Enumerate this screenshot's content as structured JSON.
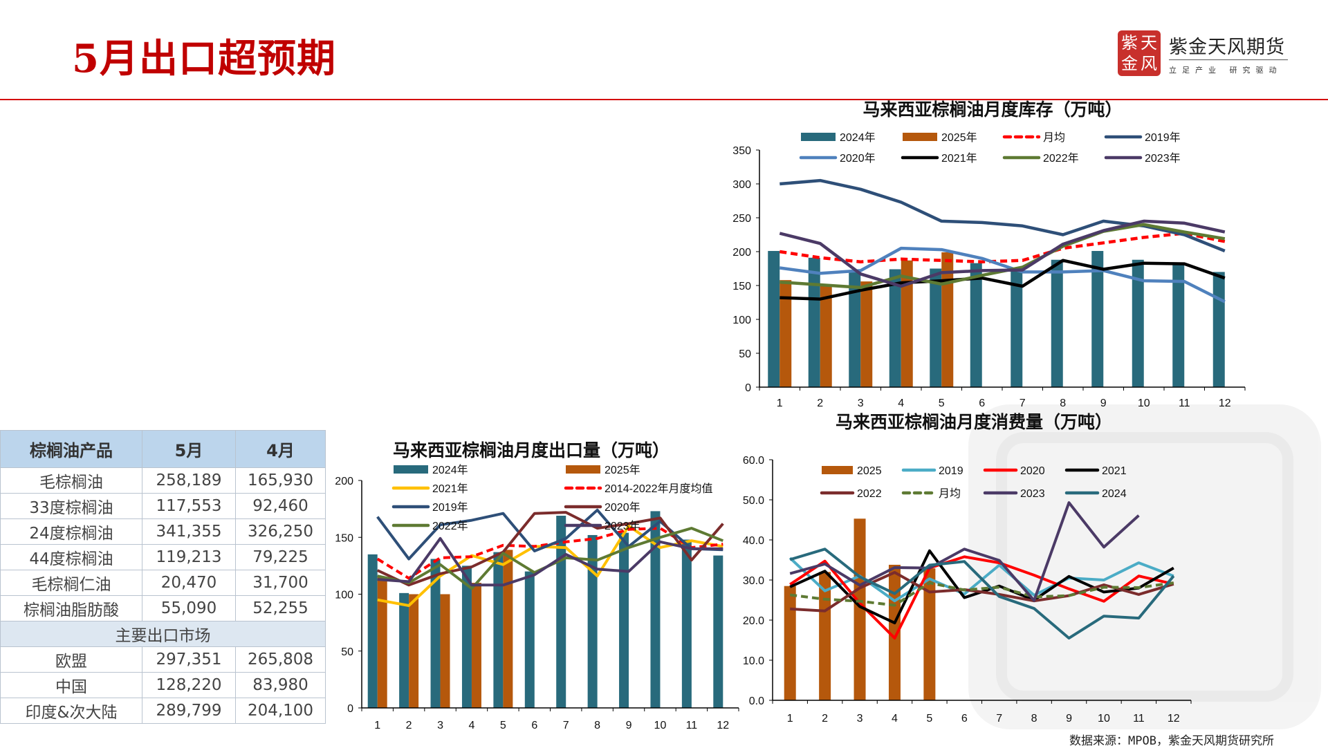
{
  "header": {
    "title": "5月出口超预期"
  },
  "logo": {
    "seal_chars": [
      "紫",
      "天",
      "金",
      "风"
    ],
    "brand": "紫金天风期货",
    "slogan": "立足产业 研究驱动"
  },
  "source": "数据来源：MPOB，紫金天风期货研究所",
  "table": {
    "headers": [
      "棕榈油产品",
      "5月",
      "4月"
    ],
    "rows": [
      [
        "毛棕榈油",
        "258,189",
        "165,930"
      ],
      [
        "33度棕榈油",
        "117,553",
        "92,460"
      ],
      [
        "24度棕榈油",
        "341,355",
        "326,250"
      ],
      [
        "44度棕榈油",
        "119,213",
        "79,225"
      ],
      [
        "毛棕榈仁油",
        "20,470",
        "31,700"
      ],
      [
        "棕榈油脂肪酸",
        "55,090",
        "52,255"
      ]
    ],
    "section": "主要出口市场",
    "market_rows": [
      [
        "欧盟",
        "297,351",
        "265,808"
      ],
      [
        "中国",
        "128,220",
        "83,980"
      ],
      [
        "印度&次大陆",
        "289,799",
        "204,100"
      ]
    ]
  },
  "chart_data": [
    {
      "type": "bar+line",
      "title": "马来西亚棕榈油月度库存（万吨）",
      "categories": [
        "1",
        "2",
        "3",
        "4",
        "5",
        "6",
        "7",
        "8",
        "9",
        "10",
        "11",
        "12"
      ],
      "ylim": [
        0,
        350
      ],
      "y_ticks": [
        "0",
        "50",
        "100",
        "150",
        "200",
        "250",
        "300",
        "350"
      ],
      "grid": false,
      "legend_position": "top",
      "legend": [
        "2024年",
        "2025年",
        "月均",
        "2019年",
        "2020年",
        "2021年",
        "2022年",
        "2023年"
      ],
      "bar_series": [
        {
          "name": "2024年",
          "color": "#286a7c",
          "values": [
            201,
            191,
            171,
            174,
            175,
            183,
            172,
            188,
            201,
            188,
            181,
            170
          ]
        },
        {
          "name": "2025年",
          "color": "#b5580c",
          "values": [
            158,
            152,
            156,
            187,
            199,
            null,
            null,
            null,
            null,
            null,
            null,
            null
          ]
        }
      ],
      "line_series": [
        {
          "name": "月均",
          "color": "#ff0000",
          "dashed": true,
          "values": [
            200,
            191,
            185,
            189,
            187,
            185,
            187,
            205,
            213,
            221,
            227,
            215
          ]
        },
        {
          "name": "2019年",
          "color": "#2e4f78",
          "values": [
            300,
            305,
            292,
            273,
            245,
            243,
            238,
            225,
            245,
            238,
            225,
            201
          ]
        },
        {
          "name": "2020年",
          "color": "#4f81bd",
          "values": [
            176,
            168,
            172,
            205,
            203,
            190,
            170,
            170,
            172,
            157,
            156,
            126
          ]
        },
        {
          "name": "2021年",
          "color": "#000000",
          "values": [
            132,
            130,
            143,
            154,
            157,
            161,
            149,
            187,
            174,
            183,
            182,
            161
          ]
        },
        {
          "name": "2022年",
          "color": "#5e7a33",
          "values": [
            155,
            151,
            147,
            164,
            152,
            165,
            177,
            208,
            230,
            240,
            229,
            219
          ]
        },
        {
          "name": "2023年",
          "color": "#4b3a66",
          "values": [
            227,
            212,
            167,
            149,
            169,
            172,
            173,
            211,
            231,
            245,
            242,
            229
          ]
        }
      ]
    },
    {
      "type": "bar+line",
      "title": "马来西亚棕榈油月度出口量（万吨）",
      "categories": [
        "1",
        "2",
        "3",
        "4",
        "5",
        "6",
        "7",
        "8",
        "9",
        "10",
        "11",
        "12"
      ],
      "ylim": [
        0,
        200
      ],
      "y_ticks": [
        "0",
        "50",
        "100",
        "150",
        "200"
      ],
      "grid": false,
      "legend_position": "top",
      "legend": [
        "2024年",
        "2025年",
        "2021年",
        "2014-2022年月度均值",
        "2019年",
        "2020年",
        "2022年",
        "2023年"
      ],
      "bar_series": [
        {
          "name": "2024年",
          "color": "#286a7c",
          "values": [
            135,
            101,
            131,
            125,
            137,
            120,
            169,
            152,
            154,
            173,
            148,
            134
          ]
        },
        {
          "name": "2025年",
          "color": "#b5580c",
          "values": [
            115,
            100,
            100,
            110,
            139,
            null,
            null,
            null,
            null,
            null,
            null,
            null
          ]
        }
      ],
      "line_series": [
        {
          "name": "2021年",
          "color": "#ffc000",
          "values": [
            95,
            90,
            116,
            134,
            126,
            142,
            141,
            116,
            160,
            141,
            147,
            142
          ]
        },
        {
          "name": "2014-2022年月度均值",
          "color": "#ff0000",
          "dashed": true,
          "values": [
            131,
            114,
            132,
            133,
            143,
            142,
            146,
            149,
            157,
            158,
            141,
            144
          ]
        },
        {
          "name": "2019年",
          "color": "#2e4f78",
          "values": [
            168,
            131,
            161,
            165,
            171,
            138,
            149,
            174,
            142,
            164,
            140,
            139
          ]
        },
        {
          "name": "2020年",
          "color": "#7b2c2c",
          "values": [
            121,
            108,
            118,
            124,
            137,
            171,
            172,
            158,
            162,
            167,
            130,
            162
          ]
        },
        {
          "name": "2022年",
          "color": "#5e7a33",
          "values": [
            116,
            110,
            126,
            105,
            136,
            119,
            132,
            130,
            141,
            150,
            158,
            147
          ]
        },
        {
          "name": "2023年",
          "color": "#4b3a66",
          "values": [
            113,
            111,
            149,
            108,
            108,
            117,
            135,
            122,
            120,
            146,
            140,
            140
          ]
        }
      ]
    },
    {
      "type": "bar+line",
      "title": "马来西亚棕榈油月度消费量（万吨）",
      "categories": [
        "1",
        "2",
        "3",
        "4",
        "5",
        "6",
        "7",
        "8",
        "9",
        "10",
        "11",
        "12"
      ],
      "ylim": [
        0,
        60
      ],
      "y_ticks": [
        "0.0",
        "10.0",
        "20.0",
        "30.0",
        "40.0",
        "50.0",
        "60.0"
      ],
      "grid": false,
      "legend_position": "top",
      "legend": [
        "2025",
        "2019",
        "2020",
        "2021",
        "2022",
        "月均",
        "2023",
        "2024"
      ],
      "bar_series": [
        {
          "name": "2025",
          "color": "#b5580c",
          "values": [
            28.5,
            32.0,
            45.3,
            33.8,
            32.9,
            null,
            null,
            null,
            null,
            null,
            null,
            null
          ]
        }
      ],
      "line_series": [
        {
          "name": "2019",
          "color": "#4bacc6",
          "values": [
            35.5,
            27.3,
            31.0,
            24.8,
            30.3,
            26.5,
            33.7,
            26.2,
            30.5,
            30.0,
            34.3,
            31.0
          ]
        },
        {
          "name": "2020",
          "color": "#ff0000",
          "values": [
            28.9,
            34.7,
            24.2,
            15.5,
            33.0,
            35.8,
            34.3,
            31.2,
            27.8,
            24.7,
            31.0,
            29.0
          ]
        },
        {
          "name": "2021",
          "color": "#000000",
          "values": [
            28.3,
            32.2,
            23.4,
            19.3,
            37.3,
            25.6,
            28.5,
            25.0,
            30.9,
            27.0,
            28.0,
            33.0
          ]
        },
        {
          "name": "2022",
          "color": "#7b2c2c",
          "values": [
            22.8,
            22.3,
            28.0,
            31.9,
            27.0,
            27.6,
            26.4,
            24.8,
            26.1,
            28.8,
            26.4,
            29.0
          ]
        },
        {
          "name": "月均",
          "color": "#5e7a33",
          "dashed": true,
          "values": [
            26.3,
            25.2,
            24.7,
            23.7,
            29.3,
            27.5,
            28.2,
            25.8,
            26.1,
            28.2,
            28.1,
            29.3
          ]
        },
        {
          "name": "2023",
          "color": "#4b3a66",
          "values": [
            31.6,
            34.0,
            28.7,
            33.1,
            33.0,
            37.7,
            34.9,
            24.9,
            49.3,
            38.2,
            46.1,
            null
          ]
        },
        {
          "name": "2024",
          "color": "#286a7c",
          "values": [
            35.1,
            37.7,
            30.8,
            26.6,
            33.7,
            34.6,
            25.9,
            22.9,
            15.5,
            21.0,
            20.5,
            31.0
          ]
        }
      ]
    }
  ]
}
